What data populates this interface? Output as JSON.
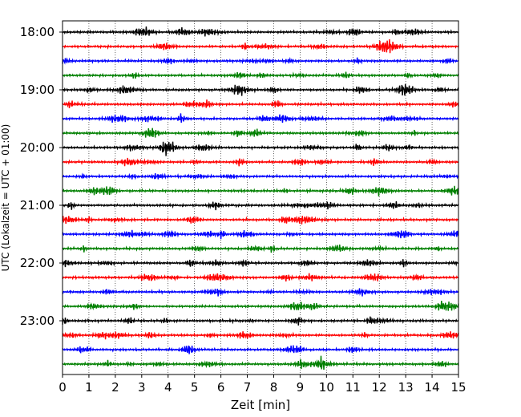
{
  "chart_data": {
    "type": "line",
    "title": "",
    "xlabel": "Zeit  [min]",
    "ylabel": "UTC (Lokalzeit = UTC + 01:00)",
    "xlim": [
      0,
      15
    ],
    "x_ticks": [
      "0",
      "1",
      "2",
      "3",
      "4",
      "5",
      "6",
      "7",
      "8",
      "9",
      "10",
      "11",
      "12",
      "13",
      "14",
      "15"
    ],
    "y_tick_labels": [
      "18:00",
      "19:00",
      "20:00",
      "21:00",
      "22:00",
      "23:00"
    ],
    "grid": "vertical dotted lines at every minute",
    "trace_minutes": 15,
    "trace_count": 24,
    "trace_start": [
      "18:00",
      "18:15",
      "18:30",
      "18:45",
      "19:00",
      "19:15",
      "19:30",
      "19:45",
      "20:00",
      "20:15",
      "20:30",
      "20:45",
      "21:00",
      "21:15",
      "21:30",
      "21:45",
      "22:00",
      "22:15",
      "22:30",
      "22:45",
      "23:00",
      "23:15",
      "23:30",
      "23:45"
    ],
    "trace_colors": [
      "#000000",
      "#ff0000",
      "#0000ff",
      "#008000"
    ]
  }
}
